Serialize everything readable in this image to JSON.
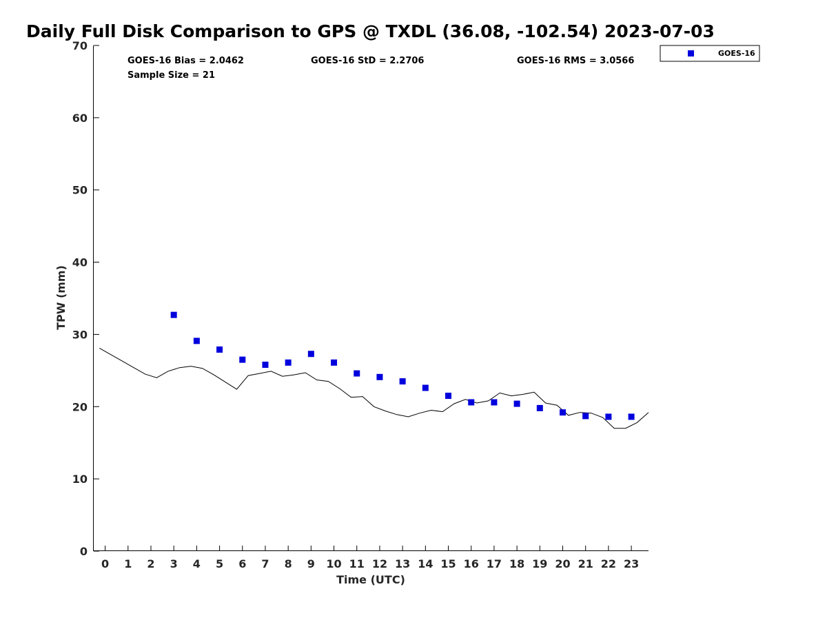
{
  "chart_data": {
    "type": "line",
    "title": "Daily Full Disk Comparison to GPS @ TXDL (36.08, -102.54) 2023-07-03",
    "xlabel": "Time (UTC)",
    "ylabel": "TPW (mm)",
    "xlim": [
      -0.5,
      23.75
    ],
    "ylim": [
      0,
      70
    ],
    "x_ticks": [
      0,
      1,
      2,
      3,
      4,
      5,
      6,
      7,
      8,
      9,
      10,
      11,
      12,
      13,
      14,
      15,
      16,
      17,
      18,
      19,
      20,
      21,
      22,
      23
    ],
    "y_ticks": [
      0,
      10,
      20,
      30,
      40,
      50,
      60,
      70
    ],
    "grid": false,
    "legend": {
      "placement": "top-right outside",
      "entries": [
        "GOES-16"
      ]
    },
    "stats": {
      "bias": "GOES-16 Bias = 2.0462",
      "std": "GOES-16 StD = 2.2706",
      "rms": "GOES-16 RMS = 3.0566",
      "sample": "Sample Size = 21"
    },
    "series": [
      {
        "name": "GPS",
        "kind": "line",
        "color": "#000000",
        "x": [
          -0.25,
          0.25,
          0.75,
          1.25,
          1.75,
          2.25,
          2.75,
          3.25,
          3.75,
          4.25,
          4.75,
          5.25,
          5.75,
          6.25,
          6.75,
          7.25,
          7.75,
          8.25,
          8.75,
          9.25,
          9.75,
          10.25,
          10.75,
          11.25,
          11.75,
          12.25,
          12.75,
          13.25,
          13.75,
          14.25,
          14.75,
          15.25,
          15.75,
          16.25,
          16.75,
          17.25,
          17.75,
          18.25,
          18.75,
          19.25,
          19.75,
          20.25,
          20.75,
          21.25,
          21.75,
          22.25,
          22.75,
          23.25,
          23.75
        ],
        "y": [
          28.1,
          27.2,
          26.3,
          25.4,
          24.5,
          24.0,
          24.9,
          25.4,
          25.6,
          25.3,
          24.4,
          23.4,
          22.4,
          24.3,
          24.6,
          24.9,
          24.2,
          24.4,
          24.7,
          23.7,
          23.5,
          22.5,
          21.3,
          21.4,
          20.0,
          19.4,
          18.9,
          18.6,
          19.1,
          19.5,
          19.3,
          20.4,
          21.0,
          20.5,
          20.8,
          21.9,
          21.5,
          21.7,
          22.0,
          20.5,
          20.2,
          18.8,
          19.2,
          19.1,
          18.5,
          17.0,
          17.0,
          17.8,
          19.2
        ]
      },
      {
        "name": "GOES-16",
        "kind": "scatter",
        "color": "#0000dd",
        "x": [
          3,
          4,
          5,
          6,
          7,
          8,
          9,
          10,
          11,
          12,
          13,
          14,
          15,
          16,
          17,
          18,
          19,
          20,
          21,
          22,
          23
        ],
        "y": [
          32.7,
          29.1,
          27.9,
          26.5,
          25.8,
          26.1,
          27.3,
          26.1,
          24.6,
          24.1,
          23.5,
          22.6,
          21.5,
          20.6,
          20.6,
          20.4,
          19.8,
          19.2,
          18.7,
          18.6,
          18.6
        ]
      }
    ]
  }
}
